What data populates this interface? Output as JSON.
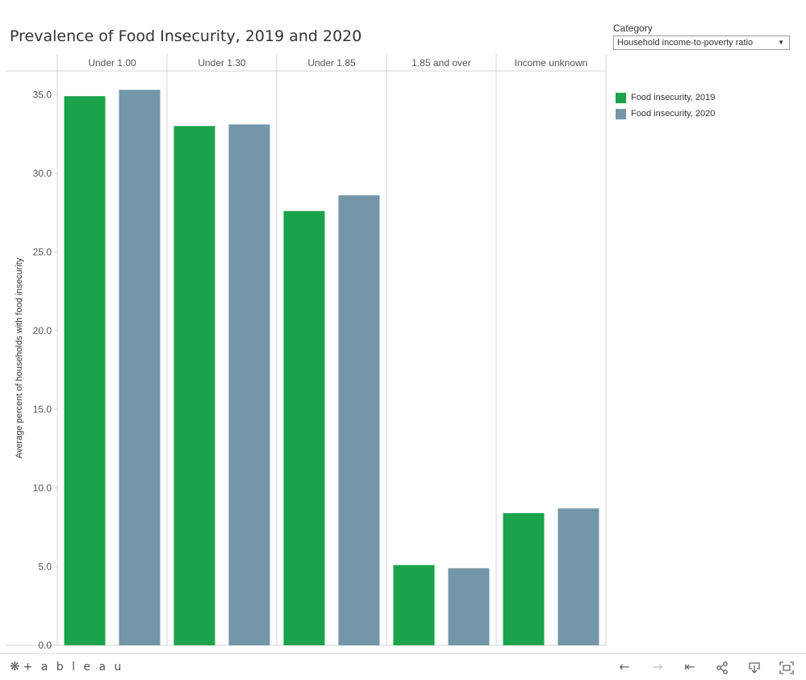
{
  "title": "Prevalence of Food Insecurity, 2019 and 2020",
  "filter": {
    "label": "Category",
    "selected": "Household income-to-poverty ratio"
  },
  "chart_data": {
    "type": "bar",
    "title": "Prevalence of Food Insecurity, 2019 and 2020",
    "ylabel": "Average percent of households with food insecurity",
    "xlabel": "",
    "categories": [
      "Under 1.00",
      "Under 1.30",
      "Under 1.85",
      "1.85 and over",
      "Income unknown"
    ],
    "series": [
      {
        "name": "Food insecurity, 2019",
        "color": "#1aa34a",
        "values": [
          34.9,
          33.0,
          27.6,
          5.1,
          8.4
        ]
      },
      {
        "name": "Food insecurity, 2020",
        "color": "#7396a8",
        "values": [
          35.3,
          33.1,
          28.6,
          4.9,
          8.7
        ]
      }
    ],
    "ylim": [
      0,
      36.5
    ],
    "yticks": [
      "0.0",
      "5.0",
      "10.0",
      "15.0",
      "20.0",
      "25.0",
      "30.0",
      "35.0"
    ],
    "grid": false,
    "legend_position": "right"
  },
  "toolbar": {
    "logo": "+ a b l e a u",
    "undo_icon": "undo-arrow-icon",
    "redo_icon": "redo-arrow-icon",
    "revert_icon": "revert-icon",
    "share_icon": "share-icon",
    "download_icon": "download-icon",
    "fullscreen_icon": "fullscreen-icon"
  }
}
